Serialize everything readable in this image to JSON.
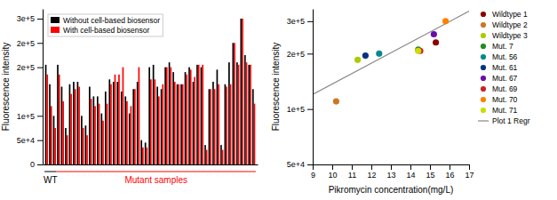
{
  "chart_data": [
    {
      "type": "bar",
      "categories": [
        null,
        null,
        null,
        null,
        null,
        null,
        null,
        null,
        null,
        null,
        null,
        null,
        null,
        null,
        null,
        null,
        null,
        null,
        null,
        null,
        null,
        null,
        null,
        null,
        null,
        null,
        null,
        null,
        null,
        null,
        null,
        null,
        null,
        null,
        null,
        null,
        null,
        null,
        null,
        null,
        null,
        null,
        null,
        null,
        null,
        null,
        null,
        null,
        null,
        null,
        null,
        null,
        null
      ],
      "series": [
        {
          "name": "Without cell-based biosensor",
          "color": "black",
          "values": [
            205000,
            165000,
            100000,
            205000,
            160000,
            75000,
            165000,
            170000,
            170000,
            100000,
            80000,
            160000,
            140000,
            140000,
            105000,
            150000,
            175000,
            170000,
            170000,
            150000,
            140000,
            105000,
            155000,
            170000,
            50000,
            45000,
            200000,
            205000,
            160000,
            155000,
            200000,
            210000,
            190000,
            165000,
            165000,
            190000,
            200000,
            170000,
            205000,
            200000,
            40000,
            155000,
            170000,
            195000,
            40000,
            165000,
            210000,
            250000,
            210000,
            300000,
            225000,
            205000,
            155000
          ]
        },
        {
          "name": "With cell-based biosensor",
          "color": "red",
          "values": [
            185000,
            120000,
            75000,
            185000,
            130000,
            60000,
            145000,
            155000,
            160000,
            75000,
            60000,
            135000,
            120000,
            125000,
            90000,
            125000,
            165000,
            185000,
            185000,
            200000,
            130000,
            120000,
            155000,
            200000,
            35000,
            35000,
            175000,
            175000,
            140000,
            165000,
            200000,
            200000,
            170000,
            165000,
            165000,
            185000,
            195000,
            180000,
            205000,
            205000,
            30000,
            155000,
            155000,
            165000,
            30000,
            160000,
            165000,
            250000,
            205000,
            300000,
            210000,
            205000,
            125000
          ]
        }
      ],
      "ylabel": "Fluorescence intensity",
      "ylim": [
        0,
        320000
      ],
      "yticks": [
        0,
        {
          "value": 50000,
          "label": "5e+4"
        },
        {
          "value": 100000,
          "label": "1e+5"
        },
        {
          "value": 200000,
          "label": "2e+5"
        },
        {
          "value": 250000,
          "label": "2e+5"
        },
        {
          "value": 300000,
          "label": "3e+5"
        }
      ],
      "tick_labels": "y",
      "legend": "upper left",
      "annotations": [
        {
          "text": "WT",
          "color": "black",
          "from": 0,
          "to": 2
        },
        {
          "text": "Mutant samples",
          "color": "red",
          "from": 3,
          "to": 52
        }
      ]
    },
    {
      "type": "scatter",
      "xlabel": "Pikromycin concentration(mg/L)",
      "ylabel": "Fluorescence intensity",
      "xlim": [
        9,
        17
      ],
      "ylim": [
        50000,
        350000
      ],
      "log": "y",
      "xticks": [
        9,
        10,
        11,
        12,
        13,
        14,
        15,
        16,
        17
      ],
      "yticks": [
        {
          "value": 50000,
          "label": "5e+4"
        },
        {
          "value": 100000,
          "label": "1e+5"
        },
        {
          "value": 200000,
          "label": "2e+5"
        },
        {
          "value": 300000,
          "label": "3e+5"
        }
      ],
      "legend": "right",
      "series": [
        {
          "name": "Wildtype 1",
          "color": "#8B0000",
          "marker": "circle",
          "x": [
            15.3
          ],
          "values": [
            230000
          ]
        },
        {
          "name": "Wildtype 2",
          "color": "#CC7722",
          "marker": "circle",
          "x": [
            10.2
          ],
          "values": [
            110000
          ]
        },
        {
          "name": "Wildtype 3",
          "color": "#AACC00",
          "marker": "circle",
          "x": [
            11.3
          ],
          "values": [
            185000
          ]
        },
        {
          "name": "Mut. 7",
          "color": "#228B22",
          "marker": "circle",
          "x": [
            14.4
          ],
          "values": [
            210000
          ]
        },
        {
          "name": "Mut. 56",
          "color": "#008B8B",
          "marker": "circle",
          "x": [
            12.4
          ],
          "values": [
            200000
          ]
        },
        {
          "name": "Mut. 61",
          "color": "#003580",
          "marker": "circle",
          "x": [
            11.7
          ],
          "values": [
            195000
          ]
        },
        {
          "name": "Mut. 67",
          "color": "#6A0DAD",
          "marker": "circle",
          "x": [
            15.2
          ],
          "values": [
            255000
          ]
        },
        {
          "name": "Mut. 69",
          "color": "#CC2222",
          "marker": "circle",
          "x": [
            14.5
          ],
          "values": [
            207000
          ]
        },
        {
          "name": "Mut. 70",
          "color": "#FF7F00",
          "marker": "circle",
          "x": [
            15.8
          ],
          "values": [
            300000
          ]
        },
        {
          "name": "Mut. 71",
          "color": "#CCDD00",
          "marker": "circle",
          "x": [
            14.4
          ],
          "values": [
            207000
          ]
        },
        {
          "name": "Plot 1 Regr",
          "color": "#888888",
          "type": "line",
          "line_style": "solid",
          "x": [
            9,
            17
          ],
          "values": [
            120000,
            340000
          ]
        }
      ]
    }
  ]
}
